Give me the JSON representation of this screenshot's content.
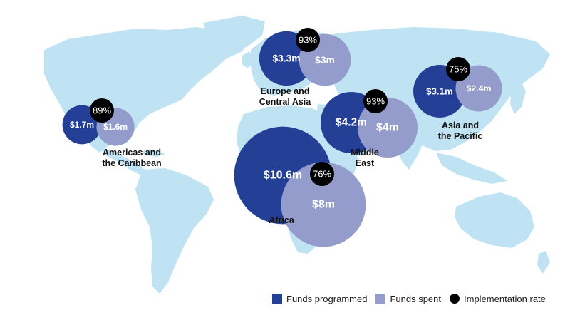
{
  "colors": {
    "land": "#bfe3f3",
    "programmed": "#243f96",
    "spent": "#939ccb",
    "implementation": "#000000",
    "text_dark": "#111111",
    "text_light": "#ffffff"
  },
  "regions": [
    {
      "name_lines": [
        "Americas and",
        "the Caribbean"
      ],
      "programmed": 1.7,
      "programmed_label": "$1.7m",
      "spent": 1.6,
      "spent_label": "$1.6m",
      "implementation_rate": 89,
      "rate_label": "89%"
    },
    {
      "name_lines": [
        "Europe and",
        "Central Asia"
      ],
      "programmed": 3.3,
      "programmed_label": "$3.3m",
      "spent": 3.0,
      "spent_label": "$3m",
      "implementation_rate": 93,
      "rate_label": "93%"
    },
    {
      "name_lines": [
        "Middle",
        "East"
      ],
      "programmed": 4.2,
      "programmed_label": "$4.2m",
      "spent": 4.0,
      "spent_label": "$4m",
      "implementation_rate": 93,
      "rate_label": "93%"
    },
    {
      "name_lines": [
        "Asia and",
        "the Pacific"
      ],
      "programmed": 3.1,
      "programmed_label": "$3.1m",
      "spent": 2.4,
      "spent_label": "$2.4m",
      "implementation_rate": 75,
      "rate_label": "75%"
    },
    {
      "name_lines": [
        "Africa"
      ],
      "programmed": 10.6,
      "programmed_label": "$10.6m",
      "spent": 8.0,
      "spent_label": "$8m",
      "implementation_rate": 76,
      "rate_label": "76%"
    }
  ],
  "legend": {
    "programmed": "Funds programmed",
    "spent": "Funds spent",
    "implementation": "Implementation rate"
  }
}
